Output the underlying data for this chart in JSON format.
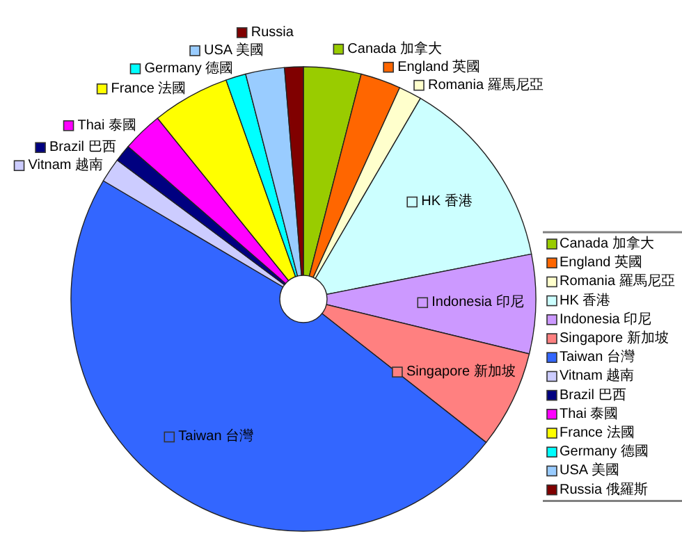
{
  "chart_data": {
    "type": "pie",
    "categories": [
      "Canada 加拿大",
      "England 英國",
      "Romania 羅馬尼亞",
      "HK 香港",
      "Indonesia 印尼",
      "Singapore 新加坡",
      "Taiwan 台灣",
      "Vitnam 越南",
      "Brazil 巴西",
      "Thai 泰國",
      "France 法國",
      "Germany 德國",
      "USA 美國",
      "Russia 俄羅斯"
    ],
    "values": [
      4.0,
      2.8,
      1.6,
      13.5,
      6.9,
      6.8,
      47.9,
      1.7,
      1.2,
      2.8,
      5.4,
      1.4,
      2.7,
      1.3
    ],
    "colors": [
      "#99cc00",
      "#ff6600",
      "#ffffcc",
      "#ccffff",
      "#cc99ff",
      "#ff8080",
      "#3366ff",
      "#ccccff",
      "#000080",
      "#ff00ff",
      "#ffff00",
      "#00ffff",
      "#99ccff",
      "#800000"
    ],
    "value_labels": [
      "Canada 加拿大",
      "England 英國",
      "Romania 羅馬尼亞",
      "HK 香港",
      "Indonesia 印尼",
      "Singapore 新加坡",
      "Taiwan 台灣",
      "Vitnam 越南",
      "Brazil 巴西",
      "Thai 泰國",
      "France 法國",
      "Germany 德國",
      "USA 美國",
      "Russia"
    ],
    "legend": "right"
  }
}
